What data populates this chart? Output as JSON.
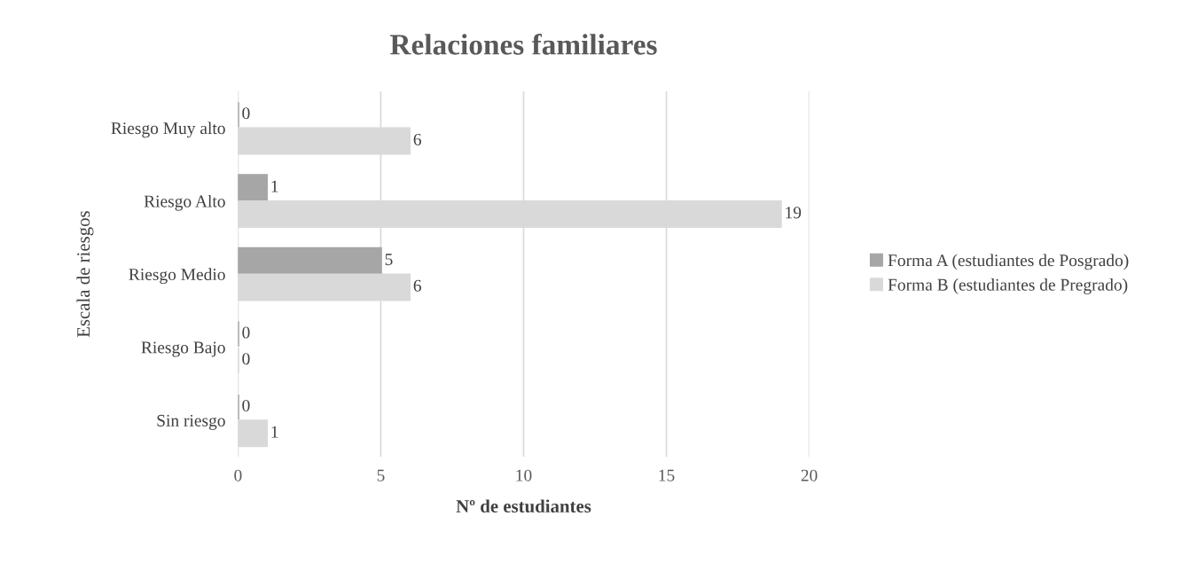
{
  "chart_data": {
    "type": "bar",
    "orientation": "horizontal",
    "title": "Relaciones familiares",
    "xlabel": "Nº de estudiantes",
    "ylabel": "Escala de riesgos",
    "categories": [
      "Riesgo Muy alto",
      "Riesgo Alto",
      "Riesgo Medio",
      "Riesgo Bajo",
      "Sin riesgo"
    ],
    "series": [
      {
        "name": "Forma A (estudiantes de Posgrado)",
        "color": "#a6a6a6",
        "values": [
          0,
          1,
          5,
          0,
          0
        ]
      },
      {
        "name": "Forma B (estudiantes de Pregrado)",
        "color": "#d9d9d9",
        "values": [
          6,
          19,
          6,
          0,
          1
        ]
      }
    ],
    "xlim": [
      0,
      20
    ],
    "xticks": [
      0,
      5,
      10,
      15,
      20
    ],
    "grid": "x",
    "legend": "right",
    "data_labels": true
  }
}
